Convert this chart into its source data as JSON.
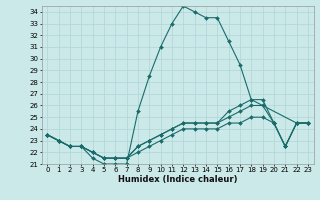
{
  "xlabel": "Humidex (Indice chaleur)",
  "background_color": "#cce9e9",
  "grid_color": "#b0d4d4",
  "line_color": "#1a6b6b",
  "xlim": [
    -0.5,
    23.5
  ],
  "ylim": [
    21,
    34.5
  ],
  "yticks": [
    21,
    22,
    23,
    24,
    25,
    26,
    27,
    28,
    29,
    30,
    31,
    32,
    33,
    34
  ],
  "xticks": [
    0,
    1,
    2,
    3,
    4,
    5,
    6,
    7,
    8,
    9,
    10,
    11,
    12,
    13,
    14,
    15,
    16,
    17,
    18,
    19,
    20,
    21,
    22,
    23
  ],
  "series": [
    {
      "x": [
        0,
        1,
        2,
        3,
        4,
        5,
        6,
        7,
        8,
        9,
        10,
        11,
        12,
        13,
        14,
        15,
        16,
        17,
        18,
        22,
        23
      ],
      "y": [
        23.5,
        23.0,
        22.5,
        22.5,
        21.5,
        21.0,
        21.0,
        21.0,
        25.5,
        28.5,
        31.0,
        33.0,
        34.5,
        34.0,
        33.5,
        33.5,
        31.5,
        29.5,
        26.5,
        24.5,
        24.5
      ]
    },
    {
      "x": [
        0,
        1,
        2,
        3,
        4,
        5,
        6,
        7,
        8,
        9,
        10,
        11,
        12,
        13,
        14,
        15,
        16,
        17,
        18,
        19,
        20,
        21,
        22,
        23
      ],
      "y": [
        23.5,
        23.0,
        22.5,
        22.5,
        22.0,
        21.5,
        21.5,
        21.5,
        22.0,
        22.5,
        23.0,
        23.5,
        24.0,
        24.0,
        24.0,
        24.0,
        24.5,
        24.5,
        25.0,
        25.0,
        24.5,
        22.5,
        24.5,
        24.5
      ]
    },
    {
      "x": [
        0,
        1,
        2,
        3,
        4,
        5,
        6,
        7,
        8,
        9,
        10,
        11,
        12,
        13,
        14,
        15,
        16,
        17,
        18,
        19,
        20,
        21,
        22,
        23
      ],
      "y": [
        23.5,
        23.0,
        22.5,
        22.5,
        22.0,
        21.5,
        21.5,
        21.5,
        22.5,
        23.0,
        23.5,
        24.0,
        24.5,
        24.5,
        24.5,
        24.5,
        25.0,
        25.5,
        26.0,
        26.0,
        24.5,
        22.5,
        24.5,
        24.5
      ]
    },
    {
      "x": [
        0,
        1,
        2,
        3,
        4,
        5,
        6,
        7,
        8,
        9,
        10,
        11,
        12,
        13,
        14,
        15,
        16,
        17,
        18,
        19,
        20,
        21,
        22,
        23
      ],
      "y": [
        23.5,
        23.0,
        22.5,
        22.5,
        22.0,
        21.5,
        21.5,
        21.5,
        22.5,
        23.0,
        23.5,
        24.0,
        24.5,
        24.5,
        24.5,
        24.5,
        25.5,
        26.0,
        26.5,
        26.5,
        24.5,
        22.5,
        24.5,
        24.5
      ]
    }
  ]
}
